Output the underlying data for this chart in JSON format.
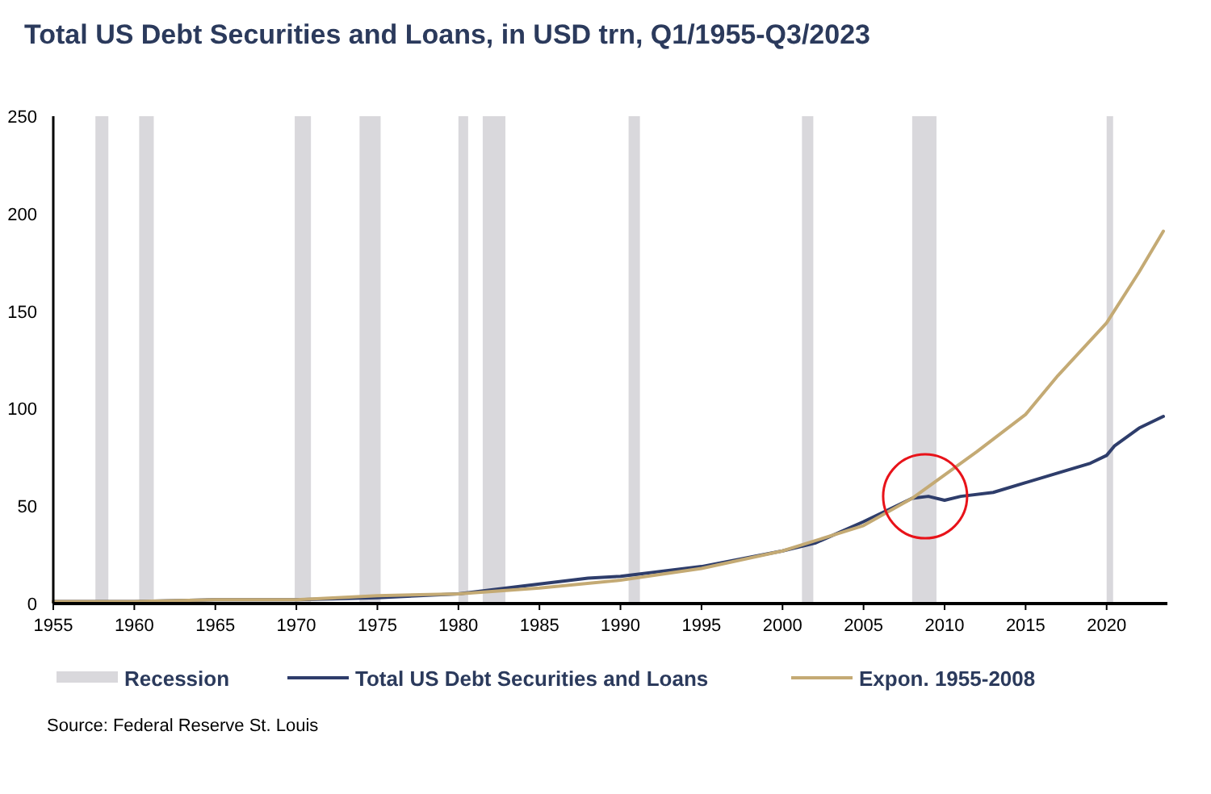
{
  "chart_data": {
    "type": "line",
    "title": "Total US Debt Securities and Loans, in USD trn, Q1/1955-Q3/2023",
    "xlim": [
      1955,
      2023.75
    ],
    "xticks": [
      1955,
      1960,
      1965,
      1970,
      1975,
      1980,
      1985,
      1990,
      1995,
      2000,
      2005,
      2010,
      2015,
      2020
    ],
    "ylim": [
      0,
      250
    ],
    "yticks": [
      0,
      50,
      100,
      150,
      200,
      250
    ],
    "grid": false,
    "legend": "bottom",
    "bands": [
      {
        "axis": "x",
        "from": 1957.6,
        "to": 1958.4,
        "label": "Recession",
        "color": "#d9d8dc"
      },
      {
        "axis": "x",
        "from": 1960.3,
        "to": 1961.2,
        "color": "#d9d8dc"
      },
      {
        "axis": "x",
        "from": 1969.9,
        "to": 1970.9,
        "color": "#d9d8dc"
      },
      {
        "axis": "x",
        "from": 1973.9,
        "to": 1975.2,
        "color": "#d9d8dc"
      },
      {
        "axis": "x",
        "from": 1980.0,
        "to": 1980.6,
        "color": "#d9d8dc"
      },
      {
        "axis": "x",
        "from": 1981.5,
        "to": 1982.9,
        "color": "#d9d8dc"
      },
      {
        "axis": "x",
        "from": 1990.5,
        "to": 1991.2,
        "color": "#d9d8dc"
      },
      {
        "axis": "x",
        "from": 2001.2,
        "to": 2001.9,
        "color": "#d9d8dc"
      },
      {
        "axis": "x",
        "from": 2008.0,
        "to": 2009.5,
        "color": "#d9d8dc"
      },
      {
        "axis": "x",
        "from": 2020.0,
        "to": 2020.4,
        "color": "#d9d8dc"
      }
    ],
    "series": [
      {
        "name": "Total US Debt Securities and Loans",
        "color": "#2e3d6b",
        "x": [
          1955,
          1960,
          1965,
          1970,
          1975,
          1980,
          1985,
          1988,
          1990,
          1995,
          2000,
          2002,
          2005,
          2007,
          2008,
          2009,
          2010,
          2011,
          2013,
          2015,
          2017,
          2019,
          2020,
          2020.5,
          2022,
          2023.5
        ],
        "values": [
          1,
          1,
          2,
          2,
          3,
          5,
          10,
          13,
          14,
          19,
          27,
          31,
          42,
          50,
          54,
          55,
          53,
          55,
          57,
          62,
          67,
          72,
          76,
          81,
          90,
          96
        ]
      },
      {
        "name": "Expon. 1955-2008",
        "color": "#c4aa74",
        "x": [
          1955,
          1960,
          1965,
          1970,
          1975,
          1980,
          1985,
          1990,
          1995,
          2000,
          2005,
          2008,
          2010,
          2012,
          2015,
          2017,
          2020,
          2022,
          2023.5
        ],
        "values": [
          1,
          1,
          2,
          2,
          4,
          5,
          8,
          12,
          18,
          27,
          40,
          54,
          66,
          78,
          97,
          117,
          144,
          170,
          191
        ]
      }
    ],
    "annotations": [
      "Source: Federal Reserve St. Louis"
    ]
  }
}
